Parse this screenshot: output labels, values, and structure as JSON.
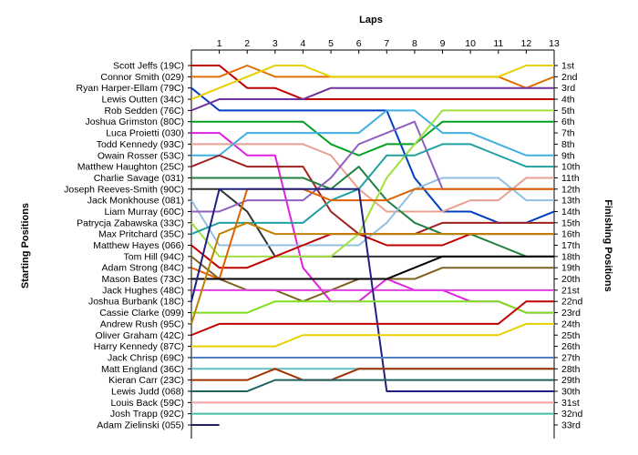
{
  "chart_data": {
    "type": "line",
    "title": "",
    "top_axis_title": "Laps",
    "left_axis_title": "Starting Positions",
    "right_axis_title": "Finishing Positions",
    "laps": [
      1,
      2,
      3,
      4,
      5,
      6,
      7,
      8,
      9,
      10,
      11,
      12,
      13
    ],
    "drivers": [
      "Scott Jeffs (19C)",
      "Connor Smith (029)",
      "Ryan Harper-Ellam (79C)",
      "Lewis Outten (34C)",
      "Rob Sedden (76C)",
      "Joshua Grimston (80C)",
      "Luca Proietti (030)",
      "Todd Kennedy (93C)",
      "Owain Rosser (53C)",
      "Matthew Haughton (25C)",
      "Charlie Savage (031)",
      "Joseph Reeves-Smith (90C)",
      "Jack Monkhouse (081)",
      "Liam Murray (60C)",
      "Patrycja Zabawska (33C)",
      "Max Pritchard (35C)",
      "Matthew Hayes (066)",
      "Tom Hill (94C)",
      "Adam Strong (84C)",
      "Mason Bates (73C)",
      "Jack Hughes (48C)",
      "Joshua Burbank (18C)",
      "Cassie Clarke (099)",
      "Andrew Rush (95C)",
      "Oliver Graham (42C)",
      "Harry Kennedy (87C)",
      "Jack Chrisp (69C)",
      "Matt England (36C)",
      "Kieran Carr (23C)",
      "Lewis Judd (068)",
      "Louis Back (59C)",
      "Josh Trapp (92C)",
      "Adam Zielinski (055)"
    ],
    "finishing_positions": [
      "1st",
      "2nd",
      "3rd",
      "4th",
      "5th",
      "6th",
      "7th",
      "8th",
      "9th",
      "10th",
      "11th",
      "12th",
      "13th",
      "14th",
      "15th",
      "16th",
      "17th",
      "18th",
      "19th",
      "20th",
      "21st",
      "22nd",
      "23rd",
      "24th",
      "25th",
      "26th",
      "27th",
      "28th",
      "29th",
      "30th",
      "31st",
      "32nd",
      "33rd"
    ],
    "ylim": [
      1,
      33
    ],
    "xlim": [
      0,
      13
    ],
    "grid": false,
    "series": [
      {
        "color": "#c00000",
        "positions": [
          1,
          1,
          3,
          3,
          4,
          4,
          4,
          4,
          4,
          4,
          4,
          4,
          4,
          4
        ]
      },
      {
        "color": "#e07000",
        "positions": [
          2,
          2,
          1,
          2,
          2,
          2,
          2,
          2,
          2,
          2,
          2,
          2,
          3,
          2
        ]
      },
      {
        "color": "#0040c0",
        "positions": [
          3,
          5,
          5,
          5,
          5,
          5,
          5,
          5,
          11,
          14,
          14,
          15,
          15,
          14
        ]
      },
      {
        "color": "#e6d000",
        "positions": [
          4,
          3,
          2,
          1,
          1,
          2,
          2,
          2,
          2,
          2,
          2,
          2,
          1,
          1
        ]
      },
      {
        "color": "#7030a0",
        "positions": [
          5,
          4,
          4,
          4,
          4,
          3,
          3,
          3,
          3,
          3,
          3,
          3,
          3,
          3
        ]
      },
      {
        "color": "#00a020",
        "positions": [
          6,
          6,
          6,
          6,
          6,
          8,
          9,
          8,
          8,
          6,
          6,
          6,
          6,
          6
        ]
      },
      {
        "color": "#e020e0",
        "positions": [
          7,
          7,
          9,
          9,
          19,
          22,
          22,
          20,
          21,
          21,
          22,
          22,
          23,
          23
        ]
      },
      {
        "color": "#e8a090",
        "positions": [
          8,
          8,
          8,
          8,
          8,
          9,
          12,
          14,
          14,
          14,
          13,
          13,
          11,
          11
        ]
      },
      {
        "color": "#40b0e0",
        "positions": [
          9,
          9,
          7,
          7,
          7,
          7,
          7,
          5,
          5,
          7,
          7,
          8,
          9,
          9
        ]
      },
      {
        "color": "#a02020",
        "positions": [
          10,
          9,
          10,
          10,
          10,
          14,
          16,
          16,
          16,
          15,
          15,
          15,
          15,
          15
        ]
      },
      {
        "color": "#208040",
        "positions": [
          11,
          11,
          11,
          11,
          11,
          12,
          10,
          13,
          15,
          16,
          16,
          17,
          18,
          18
        ]
      },
      {
        "color": "#303030",
        "positions": [
          12,
          12,
          14,
          18,
          18,
          18,
          18,
          18,
          18,
          18,
          18,
          18,
          18,
          18
        ]
      },
      {
        "color": "#90c0e0",
        "positions": [
          13,
          17,
          17,
          17,
          17,
          17,
          17,
          15,
          12,
          11,
          11,
          11,
          13,
          13
        ]
      },
      {
        "color": "#9060c0",
        "positions": [
          14,
          14,
          13,
          13,
          13,
          11,
          8,
          7,
          6,
          12,
          12,
          12,
          12,
          12
        ]
      },
      {
        "color": "#a0e040",
        "positions": [
          15,
          18,
          18,
          18,
          18,
          18,
          16,
          11,
          8,
          5,
          5,
          5,
          5,
          5
        ]
      },
      {
        "color": "#20a0a0",
        "positions": [
          16,
          15,
          15,
          15,
          15,
          13,
          12,
          9,
          9,
          8,
          8,
          9,
          10,
          10
        ]
      },
      {
        "color": "#c00000",
        "positions": [
          17,
          19,
          19,
          18,
          17,
          16,
          16,
          17,
          17,
          17,
          16,
          16,
          16,
          16
        ]
      },
      {
        "color": "#806020",
        "positions": [
          18,
          20,
          21,
          21,
          22,
          21,
          20,
          20,
          20,
          19,
          19,
          19,
          19,
          19
        ]
      },
      {
        "color": "#e06000",
        "positions": [
          19,
          20,
          12,
          12,
          12,
          13,
          13,
          13,
          12,
          12,
          12,
          12,
          12,
          12
        ]
      },
      {
        "color": "#000000",
        "positions": [
          20,
          20,
          20,
          20,
          20,
          20,
          20,
          20,
          19,
          18,
          18,
          18,
          18,
          18
        ]
      },
      {
        "color": "#e040e0",
        "positions": [
          21,
          21,
          21,
          21,
          21,
          21,
          21,
          21,
          21,
          21,
          21,
          21,
          21,
          21
        ]
      },
      {
        "color": "#202080",
        "positions": [
          22,
          12,
          12,
          12,
          12,
          12,
          12,
          30,
          30,
          30,
          30,
          30,
          30,
          30
        ]
      },
      {
        "color": "#80e020",
        "positions": [
          23,
          23,
          23,
          22,
          22,
          22,
          22,
          22,
          22,
          22,
          22,
          22,
          23,
          23
        ]
      },
      {
        "color": "#c08000",
        "positions": [
          24,
          16,
          15,
          16,
          16,
          16,
          16,
          16,
          16,
          16,
          16,
          16,
          16,
          16
        ]
      },
      {
        "color": "#c00000",
        "positions": [
          25,
          24,
          24,
          24,
          24,
          24,
          24,
          24,
          24,
          24,
          24,
          24,
          22,
          22
        ]
      },
      {
        "color": "#e8d000",
        "positions": [
          26,
          26,
          26,
          26,
          25,
          25,
          25,
          25,
          25,
          25,
          25,
          25,
          24,
          24
        ]
      },
      {
        "color": "#5080c0",
        "positions": [
          27,
          27,
          27,
          27,
          27,
          27,
          27,
          27,
          27,
          27,
          27,
          27,
          27,
          27
        ]
      },
      {
        "color": "#60c0c0",
        "positions": [
          28,
          28,
          28,
          28,
          28,
          28,
          28,
          28,
          28,
          28,
          28,
          28,
          28,
          28
        ]
      },
      {
        "color": "#a03000",
        "positions": [
          29,
          29,
          29,
          28,
          29,
          29,
          28,
          28,
          28,
          28,
          28,
          28,
          28,
          28
        ]
      },
      {
        "color": "#206060",
        "positions": [
          30,
          30,
          30,
          29,
          29,
          29,
          29,
          29,
          29,
          29,
          29,
          29,
          29,
          29
        ]
      },
      {
        "color": "#f0a0a0",
        "positions": [
          31,
          31,
          31,
          31,
          31,
          31,
          31,
          31,
          31,
          31,
          31,
          31,
          31,
          31
        ]
      },
      {
        "color": "#40c0a0",
        "positions": [
          32,
          32,
          32,
          32,
          32,
          32,
          32,
          32,
          32,
          32,
          32,
          32,
          32,
          32
        ]
      },
      {
        "color": "#202060",
        "positions": [
          33,
          33
        ]
      }
    ]
  }
}
